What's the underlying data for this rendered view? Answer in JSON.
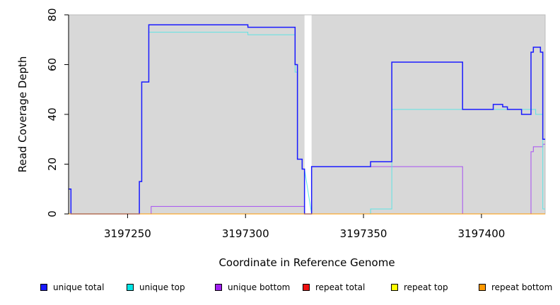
{
  "chart_data": {
    "type": "line",
    "xlabel": "Coordinate in Reference Genome",
    "ylabel": "Read Coverage Depth",
    "xlim": [
      3197225,
      3197427
    ],
    "ylim": [
      0,
      80
    ],
    "x_ticks": [
      3197250,
      3197300,
      3197350,
      3197400
    ],
    "y_ticks": [
      0,
      20,
      40,
      60,
      80
    ],
    "x_tick_labels": [
      "3197250",
      "3197300",
      "3197350",
      "3197400"
    ],
    "y_tick_labels": [
      "0",
      "20",
      "40",
      "60",
      "80"
    ],
    "background": "#d8d8d8",
    "gap": [
      3197325,
      3197328
    ],
    "series": [
      {
        "name": "unique bottom",
        "color": "#a64ff2",
        "points": [
          [
            3197225,
            0
          ],
          [
            3197235,
            0
          ],
          [
            3197235,
            0
          ],
          [
            3197260,
            0
          ],
          [
            3197260,
            3
          ],
          [
            3197325,
            3
          ],
          [
            3197325,
            0
          ],
          [
            3197328,
            0
          ],
          [
            3197328,
            19
          ],
          [
            3197392,
            19
          ],
          [
            3197392,
            0
          ],
          [
            3197421,
            0
          ],
          [
            3197421,
            25
          ],
          [
            3197422,
            25
          ],
          [
            3197422,
            27
          ],
          [
            3197426,
            27
          ],
          [
            3197426,
            28
          ],
          [
            3197427,
            28
          ]
        ]
      },
      {
        "name": "unique top",
        "color": "#5fe3e3",
        "points": [
          [
            3197225,
            10
          ],
          [
            3197226,
            10
          ],
          [
            3197226,
            0
          ],
          [
            3197255,
            0
          ],
          [
            3197255,
            13
          ],
          [
            3197256,
            13
          ],
          [
            3197256,
            53
          ],
          [
            3197259,
            53
          ],
          [
            3197259,
            73
          ],
          [
            3197301,
            73
          ],
          [
            3197301,
            72
          ],
          [
            3197321,
            72
          ],
          [
            3197321,
            57
          ],
          [
            3197322,
            57
          ],
          [
            3197322,
            22
          ],
          [
            3197324,
            22
          ],
          [
            3197324,
            18
          ],
          [
            3197325,
            18
          ],
          [
            3197328,
            0
          ],
          [
            3197353,
            0
          ],
          [
            3197353,
            2
          ],
          [
            3197362,
            2
          ],
          [
            3197362,
            42
          ],
          [
            3197423,
            42
          ],
          [
            3197423,
            40
          ],
          [
            3197426,
            40
          ],
          [
            3197426,
            2
          ],
          [
            3197427,
            2
          ]
        ]
      },
      {
        "name": "unique total",
        "color": "#1a1aff",
        "points": [
          [
            3197225,
            10
          ],
          [
            3197226,
            10
          ],
          [
            3197226,
            0
          ],
          [
            3197255,
            0
          ],
          [
            3197255,
            13
          ],
          [
            3197256,
            13
          ],
          [
            3197256,
            53
          ],
          [
            3197259,
            53
          ],
          [
            3197259,
            76
          ],
          [
            3197301,
            76
          ],
          [
            3197301,
            75
          ],
          [
            3197321,
            75
          ],
          [
            3197321,
            60
          ],
          [
            3197322,
            60
          ],
          [
            3197322,
            22
          ],
          [
            3197324,
            22
          ],
          [
            3197324,
            18
          ],
          [
            3197325,
            18
          ],
          [
            3197325,
            0
          ],
          [
            3197328,
            0
          ],
          [
            3197328,
            19
          ],
          [
            3197353,
            19
          ],
          [
            3197353,
            21
          ],
          [
            3197362,
            21
          ],
          [
            3197362,
            61
          ],
          [
            3197392,
            61
          ],
          [
            3197392,
            42
          ],
          [
            3197405,
            42
          ],
          [
            3197405,
            44
          ],
          [
            3197409,
            44
          ],
          [
            3197409,
            43
          ],
          [
            3197411,
            43
          ],
          [
            3197411,
            42
          ],
          [
            3197417,
            42
          ],
          [
            3197417,
            40
          ],
          [
            3197421,
            40
          ],
          [
            3197421,
            65
          ],
          [
            3197422,
            65
          ],
          [
            3197422,
            67
          ],
          [
            3197425,
            67
          ],
          [
            3197425,
            65
          ],
          [
            3197426,
            65
          ],
          [
            3197426,
            30
          ],
          [
            3197427,
            30
          ]
        ]
      },
      {
        "name": "repeat total",
        "color": "#ee1111",
        "points": [
          [
            3197225,
            0
          ],
          [
            3197325,
            0
          ],
          [
            3197328,
            0
          ],
          [
            3197427,
            0
          ]
        ]
      },
      {
        "name": "repeat top",
        "color": "#ffff33",
        "points": [
          [
            3197225,
            0
          ],
          [
            3197325,
            0
          ],
          [
            3197328,
            0
          ],
          [
            3197427,
            0
          ]
        ]
      },
      {
        "name": "repeat bottom",
        "color": "#ff9900",
        "points": [
          [
            3197225,
            0
          ],
          [
            3197325,
            0
          ],
          [
            3197328,
            0
          ],
          [
            3197427,
            0
          ]
        ]
      }
    ],
    "legend": [
      {
        "name": "unique total",
        "color": "#1a1aff"
      },
      {
        "name": "unique top",
        "color": "#00e5e5"
      },
      {
        "name": "unique bottom",
        "color": "#a020f0"
      },
      {
        "name": "repeat total",
        "color": "#ee1111"
      },
      {
        "name": "repeat top",
        "color": "#ffff00"
      },
      {
        "name": "repeat bottom",
        "color": "#ff9900"
      }
    ]
  }
}
